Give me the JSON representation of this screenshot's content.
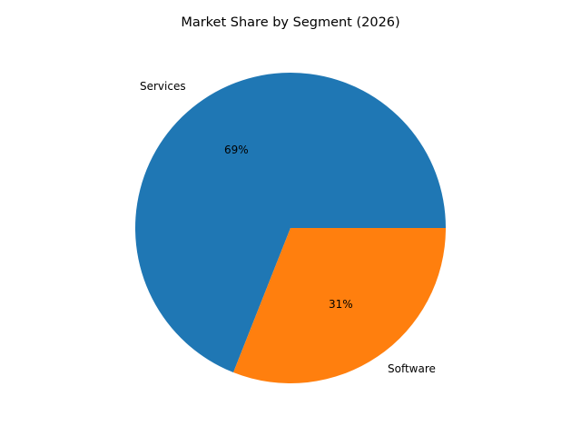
{
  "chart_data": {
    "type": "pie",
    "title": "Market Share by Segment (2026)",
    "categories": [
      "Services",
      "Software"
    ],
    "values": [
      69,
      31
    ],
    "value_labels": [
      "69%",
      "31%"
    ],
    "colors": [
      "#1f77b4",
      "#ff7f0e"
    ],
    "start_angle": 0,
    "direction": "counterclockwise",
    "legend": null
  }
}
